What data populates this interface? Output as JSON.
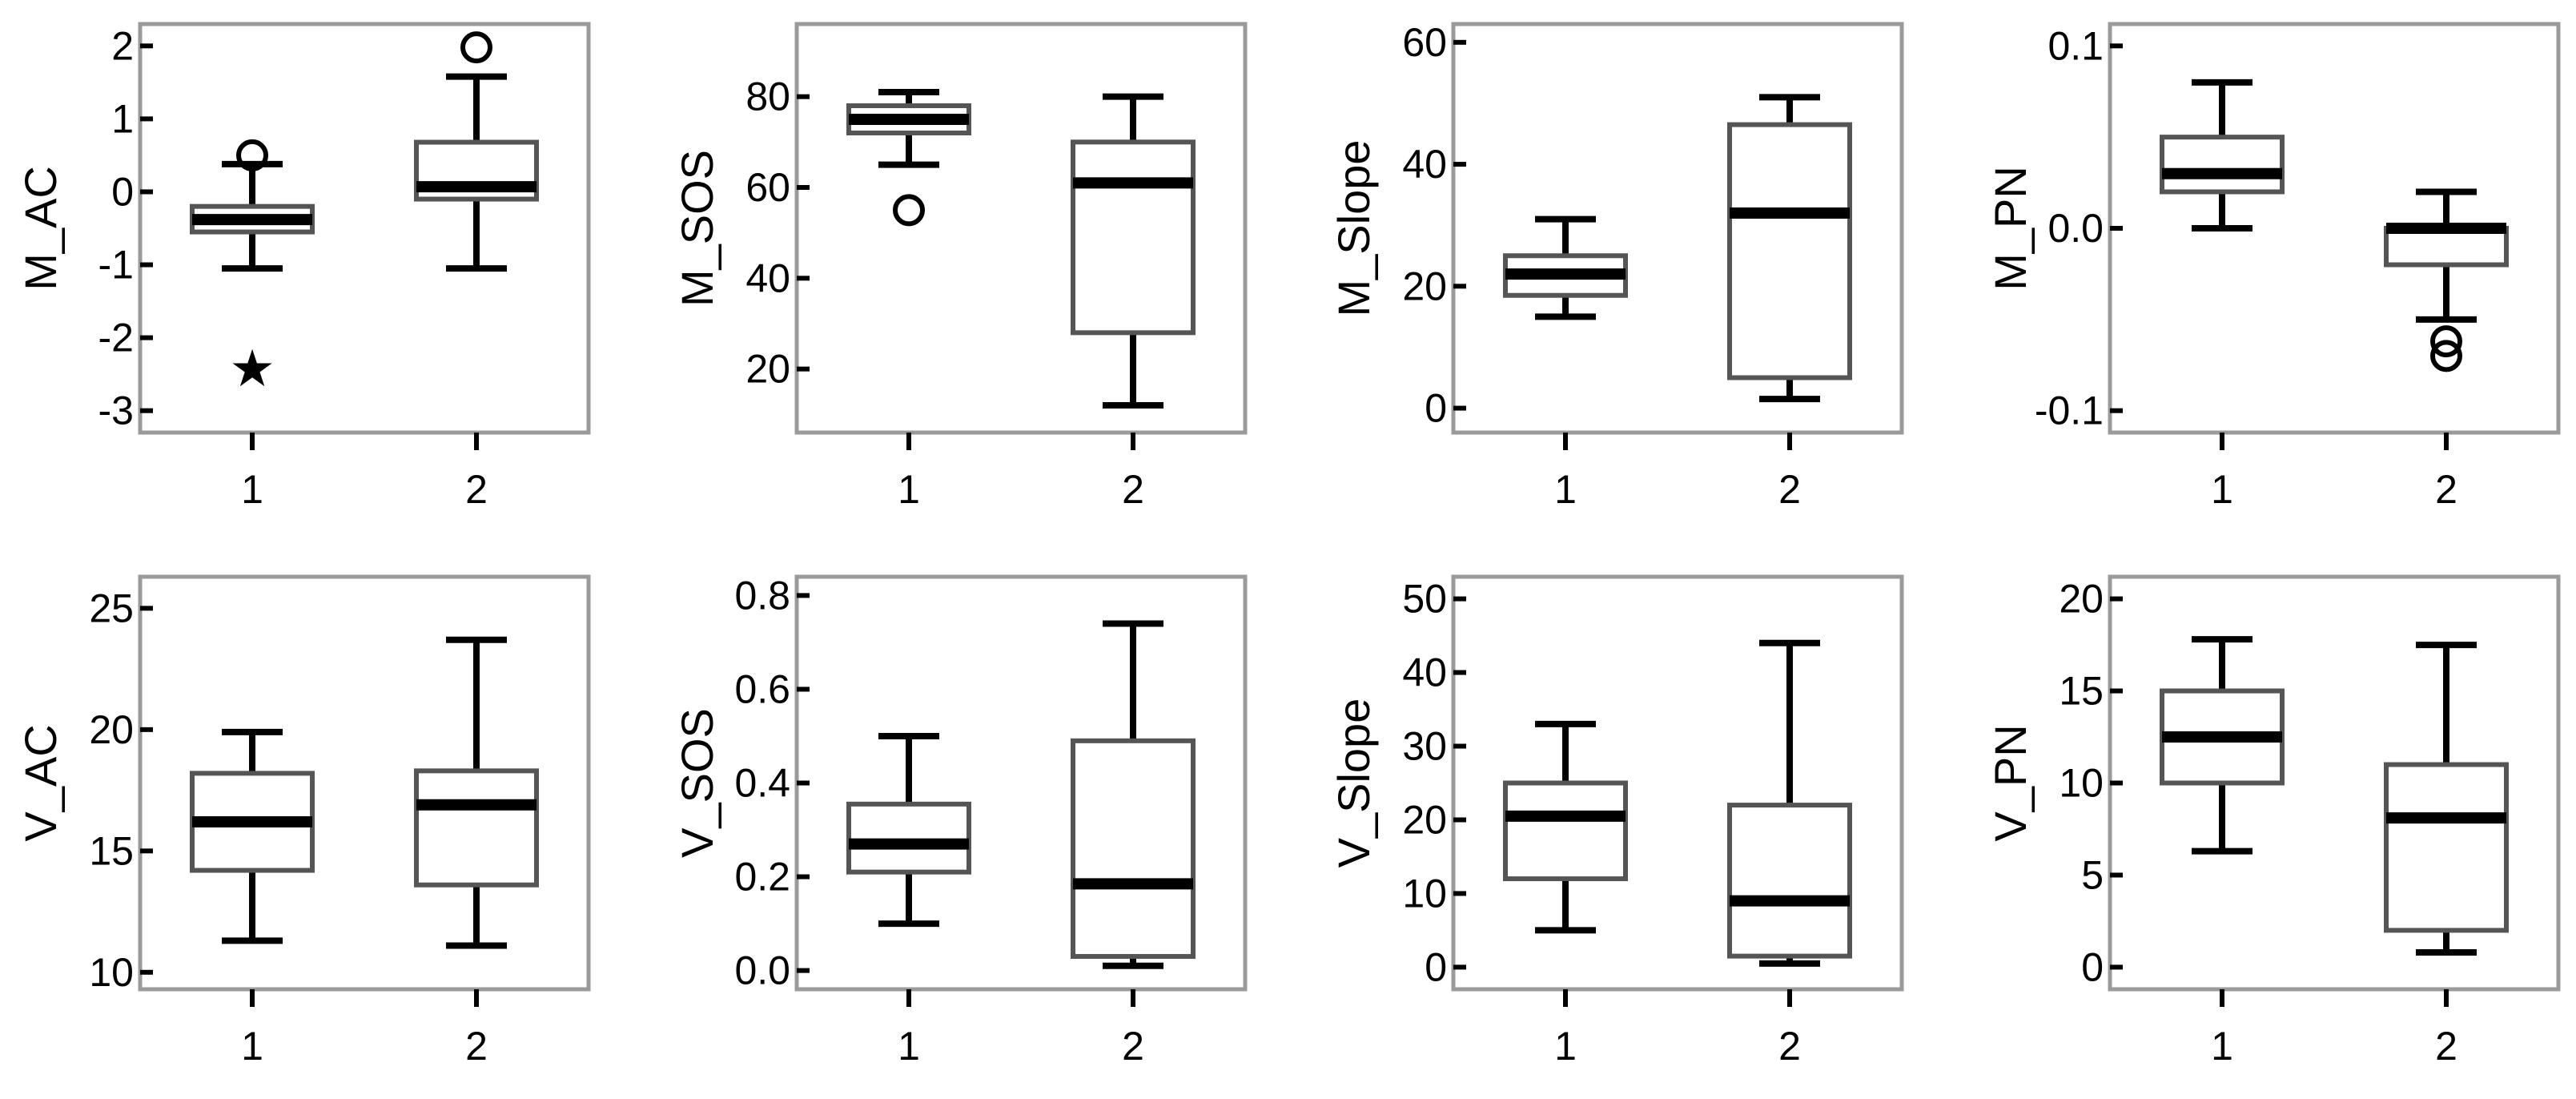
{
  "chart_data": [
    {
      "type": "box",
      "ylabel": "M_AC",
      "categories": [
        "1",
        "2"
      ],
      "yticks": [
        -3,
        -2,
        -1,
        0,
        1,
        2
      ],
      "ylim": [
        -3.3,
        2.3
      ],
      "boxes": [
        {
          "category": "1",
          "whisker_low": -1.05,
          "q1": -0.55,
          "median": -0.38,
          "q3": -0.2,
          "whisker_high": 0.38,
          "outliers": [
            0.5
          ],
          "extremes": [
            -2.4
          ]
        },
        {
          "category": "2",
          "whisker_low": -1.05,
          "q1": -0.1,
          "median": 0.07,
          "q3": 0.68,
          "whisker_high": 1.58,
          "outliers": [
            1.98
          ],
          "extremes": []
        }
      ]
    },
    {
      "type": "box",
      "ylabel": "M_SOS",
      "categories": [
        "1",
        "2"
      ],
      "yticks": [
        20,
        40,
        60,
        80
      ],
      "ylim": [
        6,
        96
      ],
      "boxes": [
        {
          "category": "1",
          "whisker_low": 65,
          "q1": 72,
          "median": 75,
          "q3": 78,
          "whisker_high": 81,
          "outliers": [
            55
          ],
          "extremes": []
        },
        {
          "category": "2",
          "whisker_low": 12,
          "q1": 28,
          "median": 61,
          "q3": 70,
          "whisker_high": 80,
          "outliers": [],
          "extremes": []
        }
      ]
    },
    {
      "type": "box",
      "ylabel": "M_Slope",
      "categories": [
        "1",
        "2"
      ],
      "yticks": [
        0,
        20,
        40,
        60
      ],
      "ylim": [
        -4,
        63
      ],
      "boxes": [
        {
          "category": "1",
          "whisker_low": 15,
          "q1": 18.5,
          "median": 22,
          "q3": 25,
          "whisker_high": 31,
          "outliers": [],
          "extremes": []
        },
        {
          "category": "2",
          "whisker_low": 1.5,
          "q1": 5,
          "median": 32,
          "q3": 46.5,
          "whisker_high": 51,
          "outliers": [],
          "extremes": []
        }
      ]
    },
    {
      "type": "box",
      "ylabel": "M_PN",
      "categories": [
        "1",
        "2"
      ],
      "yticks": [
        -0.1,
        0.0,
        0.1
      ],
      "ytick_labels": [
        "-0.1",
        "0.0",
        "0.1"
      ],
      "ylim": [
        -0.112,
        0.112
      ],
      "boxes": [
        {
          "category": "1",
          "whisker_low": 0.0,
          "q1": 0.02,
          "median": 0.03,
          "q3": 0.05,
          "whisker_high": 0.08,
          "outliers": [],
          "extremes": []
        },
        {
          "category": "2",
          "whisker_low": -0.05,
          "q1": -0.02,
          "median": 0.0,
          "q3": 0.0,
          "whisker_high": 0.02,
          "outliers": [
            -0.062,
            -0.07
          ],
          "extremes": []
        }
      ]
    },
    {
      "type": "box",
      "ylabel": "V_AC",
      "categories": [
        "1",
        "2"
      ],
      "yticks": [
        10,
        15,
        20,
        25
      ],
      "ylim": [
        9.3,
        26.3
      ],
      "boxes": [
        {
          "category": "1",
          "whisker_low": 11.3,
          "q1": 14.2,
          "median": 16.2,
          "q3": 18.2,
          "whisker_high": 19.9,
          "outliers": [],
          "extremes": []
        },
        {
          "category": "2",
          "whisker_low": 11.1,
          "q1": 13.6,
          "median": 16.9,
          "q3": 18.3,
          "whisker_high": 23.7,
          "outliers": [],
          "extremes": []
        }
      ]
    },
    {
      "type": "box",
      "ylabel": "V_SOS",
      "categories": [
        "1",
        "2"
      ],
      "yticks": [
        0.0,
        0.2,
        0.4,
        0.6,
        0.8
      ],
      "ytick_labels": [
        "0.0",
        "0.2",
        "0.4",
        "0.6",
        "0.8"
      ],
      "ylim": [
        -0.04,
        0.84
      ],
      "boxes": [
        {
          "category": "1",
          "whisker_low": 0.1,
          "q1": 0.21,
          "median": 0.27,
          "q3": 0.355,
          "whisker_high": 0.5,
          "outliers": [],
          "extremes": []
        },
        {
          "category": "2",
          "whisker_low": 0.01,
          "q1": 0.03,
          "median": 0.185,
          "q3": 0.49,
          "whisker_high": 0.74,
          "outliers": [],
          "extremes": []
        }
      ]
    },
    {
      "type": "box",
      "ylabel": "V_Slope",
      "categories": [
        "1",
        "2"
      ],
      "yticks": [
        0,
        10,
        20,
        30,
        40,
        50
      ],
      "ylim": [
        -3,
        53
      ],
      "boxes": [
        {
          "category": "1",
          "whisker_low": 5,
          "q1": 12,
          "median": 20.5,
          "q3": 25,
          "whisker_high": 33,
          "outliers": [],
          "extremes": []
        },
        {
          "category": "2",
          "whisker_low": 0.5,
          "q1": 1.5,
          "median": 9,
          "q3": 22,
          "whisker_high": 44,
          "outliers": [],
          "extremes": []
        }
      ]
    },
    {
      "type": "box",
      "ylabel": "V_PN",
      "categories": [
        "1",
        "2"
      ],
      "yticks": [
        0,
        5,
        10,
        15,
        20
      ],
      "ylim": [
        -1.2,
        21.2
      ],
      "boxes": [
        {
          "category": "1",
          "whisker_low": 6.3,
          "q1": 10,
          "median": 12.5,
          "q3": 15,
          "whisker_high": 17.8,
          "outliers": [],
          "extremes": []
        },
        {
          "category": "2",
          "whisker_low": 0.8,
          "q1": 2,
          "median": 8.1,
          "q3": 11,
          "whisker_high": 17.5,
          "outliers": [],
          "extremes": []
        }
      ]
    }
  ]
}
